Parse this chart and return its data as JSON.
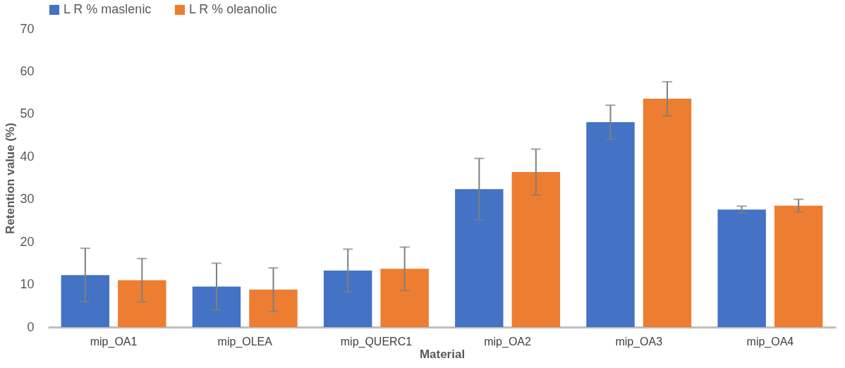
{
  "chart_data": {
    "type": "bar",
    "xlabel": "Material",
    "ylabel": "Retention value (%)",
    "categories": [
      "mip_OA1",
      "mip_OLEA",
      "mip_QUERC1",
      "mip_OA2",
      "mip_OA3",
      "mip_OA4"
    ],
    "series": [
      {
        "name": "L R % maslenic",
        "color": "#4472c4",
        "values": [
          12.2,
          9.5,
          13.3,
          32.4,
          48.1,
          27.6
        ],
        "errors": [
          6.3,
          5.5,
          5.0,
          7.2,
          4.0,
          0.8
        ]
      },
      {
        "name": "L R % oleanolic",
        "color": "#ed7d31",
        "values": [
          11.0,
          8.8,
          13.7,
          36.4,
          53.6,
          28.5
        ],
        "errors": [
          5.1,
          5.1,
          5.1,
          5.4,
          4.0,
          1.5
        ]
      }
    ],
    "ylim": [
      0,
      70
    ],
    "yticks": [
      0,
      10,
      20,
      30,
      40,
      50,
      60,
      70
    ],
    "grid": false,
    "legend": "top"
  }
}
